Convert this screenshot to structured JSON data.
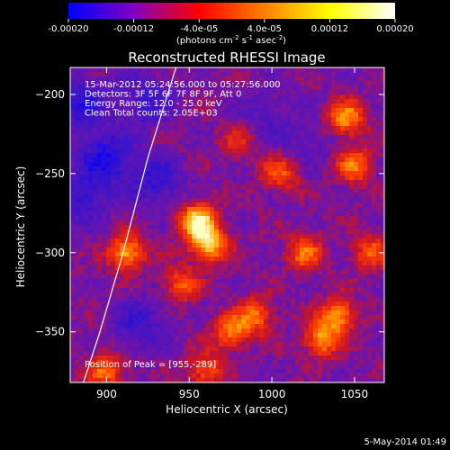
{
  "chart_data": {
    "type": "heatmap",
    "title": "Reconstructed RHESSI Image",
    "xlabel": "Heliocentric X (arcsec)",
    "ylabel": "Heliocentric Y (arcsec)",
    "xlim": [
      878,
      1068
    ],
    "ylim": [
      -382,
      -183
    ],
    "xticks": [
      900,
      950,
      1000,
      1050
    ],
    "yticks": [
      -200,
      -250,
      -300,
      -350
    ],
    "colorbar": {
      "min": -0.0002,
      "max": 0.0002,
      "ticks": [
        -0.0002,
        -0.00012,
        -4e-05,
        4e-05,
        0.00012,
        0.0002
      ],
      "tick_labels": [
        "-0.00020",
        "-0.00012",
        "-4.0e-05",
        "4.0e-05",
        "0.00012",
        "0.00020"
      ],
      "unit_label": "(photons cm",
      "unit_parts": [
        "(photons cm",
        "-2",
        " s",
        "-1",
        " asec",
        "-2",
        ")"
      ],
      "colors": [
        "#0000ff",
        "#8000c0",
        "#ff0000",
        "#ff8000",
        "#ffff00",
        "#ffffff"
      ]
    },
    "info": [
      "15-Mar-2012 05:24:56.000 to 05:27:56.000",
      "Detectors: 3F 5F 6F 7F 8F 9F, Att 0",
      "Energy Range: 12.0 - 25.0 keV",
      "Clean     Total counts: 2.05E+03"
    ],
    "peak_label": "Position of Peak = [955,-289]",
    "peak": [
      955,
      -289
    ],
    "limb_curve": [
      [
        942,
        -183
      ],
      [
        925,
        -240
      ],
      [
        910,
        -300
      ],
      [
        896,
        -350
      ],
      [
        886,
        -382
      ]
    ],
    "blobs": [
      {
        "x": 955,
        "y": -280,
        "level": 0.95
      },
      {
        "x": 962,
        "y": -295,
        "level": 0.8
      },
      {
        "x": 912,
        "y": -300,
        "level": 0.75
      },
      {
        "x": 1045,
        "y": -215,
        "level": 0.7
      },
      {
        "x": 1050,
        "y": -245,
        "level": 0.6
      },
      {
        "x": 1040,
        "y": -340,
        "level": 0.7
      },
      {
        "x": 1030,
        "y": -355,
        "level": 0.65
      },
      {
        "x": 990,
        "y": -340,
        "level": 0.55
      },
      {
        "x": 975,
        "y": -350,
        "level": 0.6
      },
      {
        "x": 1005,
        "y": -250,
        "level": 0.5
      },
      {
        "x": 1020,
        "y": -300,
        "level": 0.55
      },
      {
        "x": 960,
        "y": -375,
        "level": 0.5
      },
      {
        "x": 900,
        "y": -375,
        "level": 0.55
      },
      {
        "x": 1060,
        "y": -300,
        "level": 0.5
      },
      {
        "x": 980,
        "y": -230,
        "level": 0.35
      },
      {
        "x": 945,
        "y": -320,
        "level": 0.5
      }
    ],
    "cold_regions": [
      {
        "x": 900,
        "y": -240,
        "level": 0.9
      },
      {
        "x": 930,
        "y": -255,
        "level": 0.7
      },
      {
        "x": 885,
        "y": -205,
        "level": 0.8
      },
      {
        "x": 885,
        "y": -265,
        "level": 0.7
      },
      {
        "x": 925,
        "y": -205,
        "level": 0.6
      },
      {
        "x": 920,
        "y": -345,
        "level": 0.6
      },
      {
        "x": 995,
        "y": -215,
        "level": 0.35
      },
      {
        "x": 1020,
        "y": -230,
        "level": 0.3
      }
    ]
  },
  "footer_date": "5-May-2014 01:49"
}
